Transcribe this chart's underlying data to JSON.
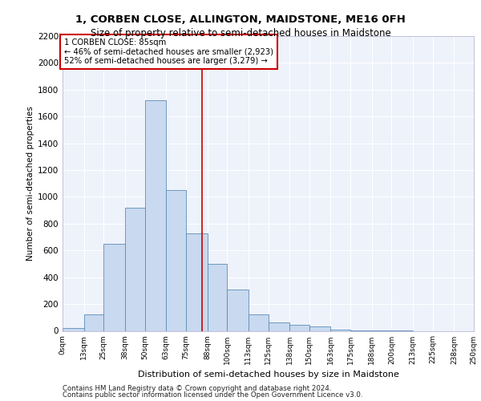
{
  "title1": "1, CORBEN CLOSE, ALLINGTON, MAIDSTONE, ME16 0FH",
  "title2": "Size of property relative to semi-detached houses in Maidstone",
  "xlabel": "Distribution of semi-detached houses by size in Maidstone",
  "ylabel": "Number of semi-detached properties",
  "footer1": "Contains HM Land Registry data © Crown copyright and database right 2024.",
  "footer2": "Contains public sector information licensed under the Open Government Licence v3.0.",
  "property_size": 85,
  "annotation_title": "1 CORBEN CLOSE: 85sqm",
  "annotation_line1": "← 46% of semi-detached houses are smaller (2,923)",
  "annotation_line2": "52% of semi-detached houses are larger (3,279) →",
  "bar_color": "#c9d9ef",
  "bar_edge_color": "#5b8db8",
  "red_line_color": "#cc0000",
  "annotation_box_color": "#cc0000",
  "background_color": "#eef2fb",
  "bin_edges": [
    0,
    13,
    25,
    38,
    50,
    63,
    75,
    88,
    100,
    113,
    125,
    138,
    150,
    163,
    175,
    188,
    200,
    213,
    225,
    238,
    250
  ],
  "bin_labels": [
    "0sqm",
    "13sqm",
    "25sqm",
    "38sqm",
    "50sqm",
    "63sqm",
    "75sqm",
    "88sqm",
    "100sqm",
    "113sqm",
    "125sqm",
    "138sqm",
    "150sqm",
    "163sqm",
    "175sqm",
    "188sqm",
    "200sqm",
    "213sqm",
    "225sqm",
    "238sqm",
    "250sqm"
  ],
  "counts": [
    20,
    120,
    650,
    920,
    1720,
    1050,
    730,
    500,
    310,
    120,
    65,
    45,
    30,
    10,
    5,
    2,
    1,
    0,
    0,
    0
  ],
  "ylim": [
    0,
    2200
  ],
  "yticks": [
    0,
    200,
    400,
    600,
    800,
    1000,
    1200,
    1400,
    1600,
    1800,
    2000,
    2200
  ]
}
